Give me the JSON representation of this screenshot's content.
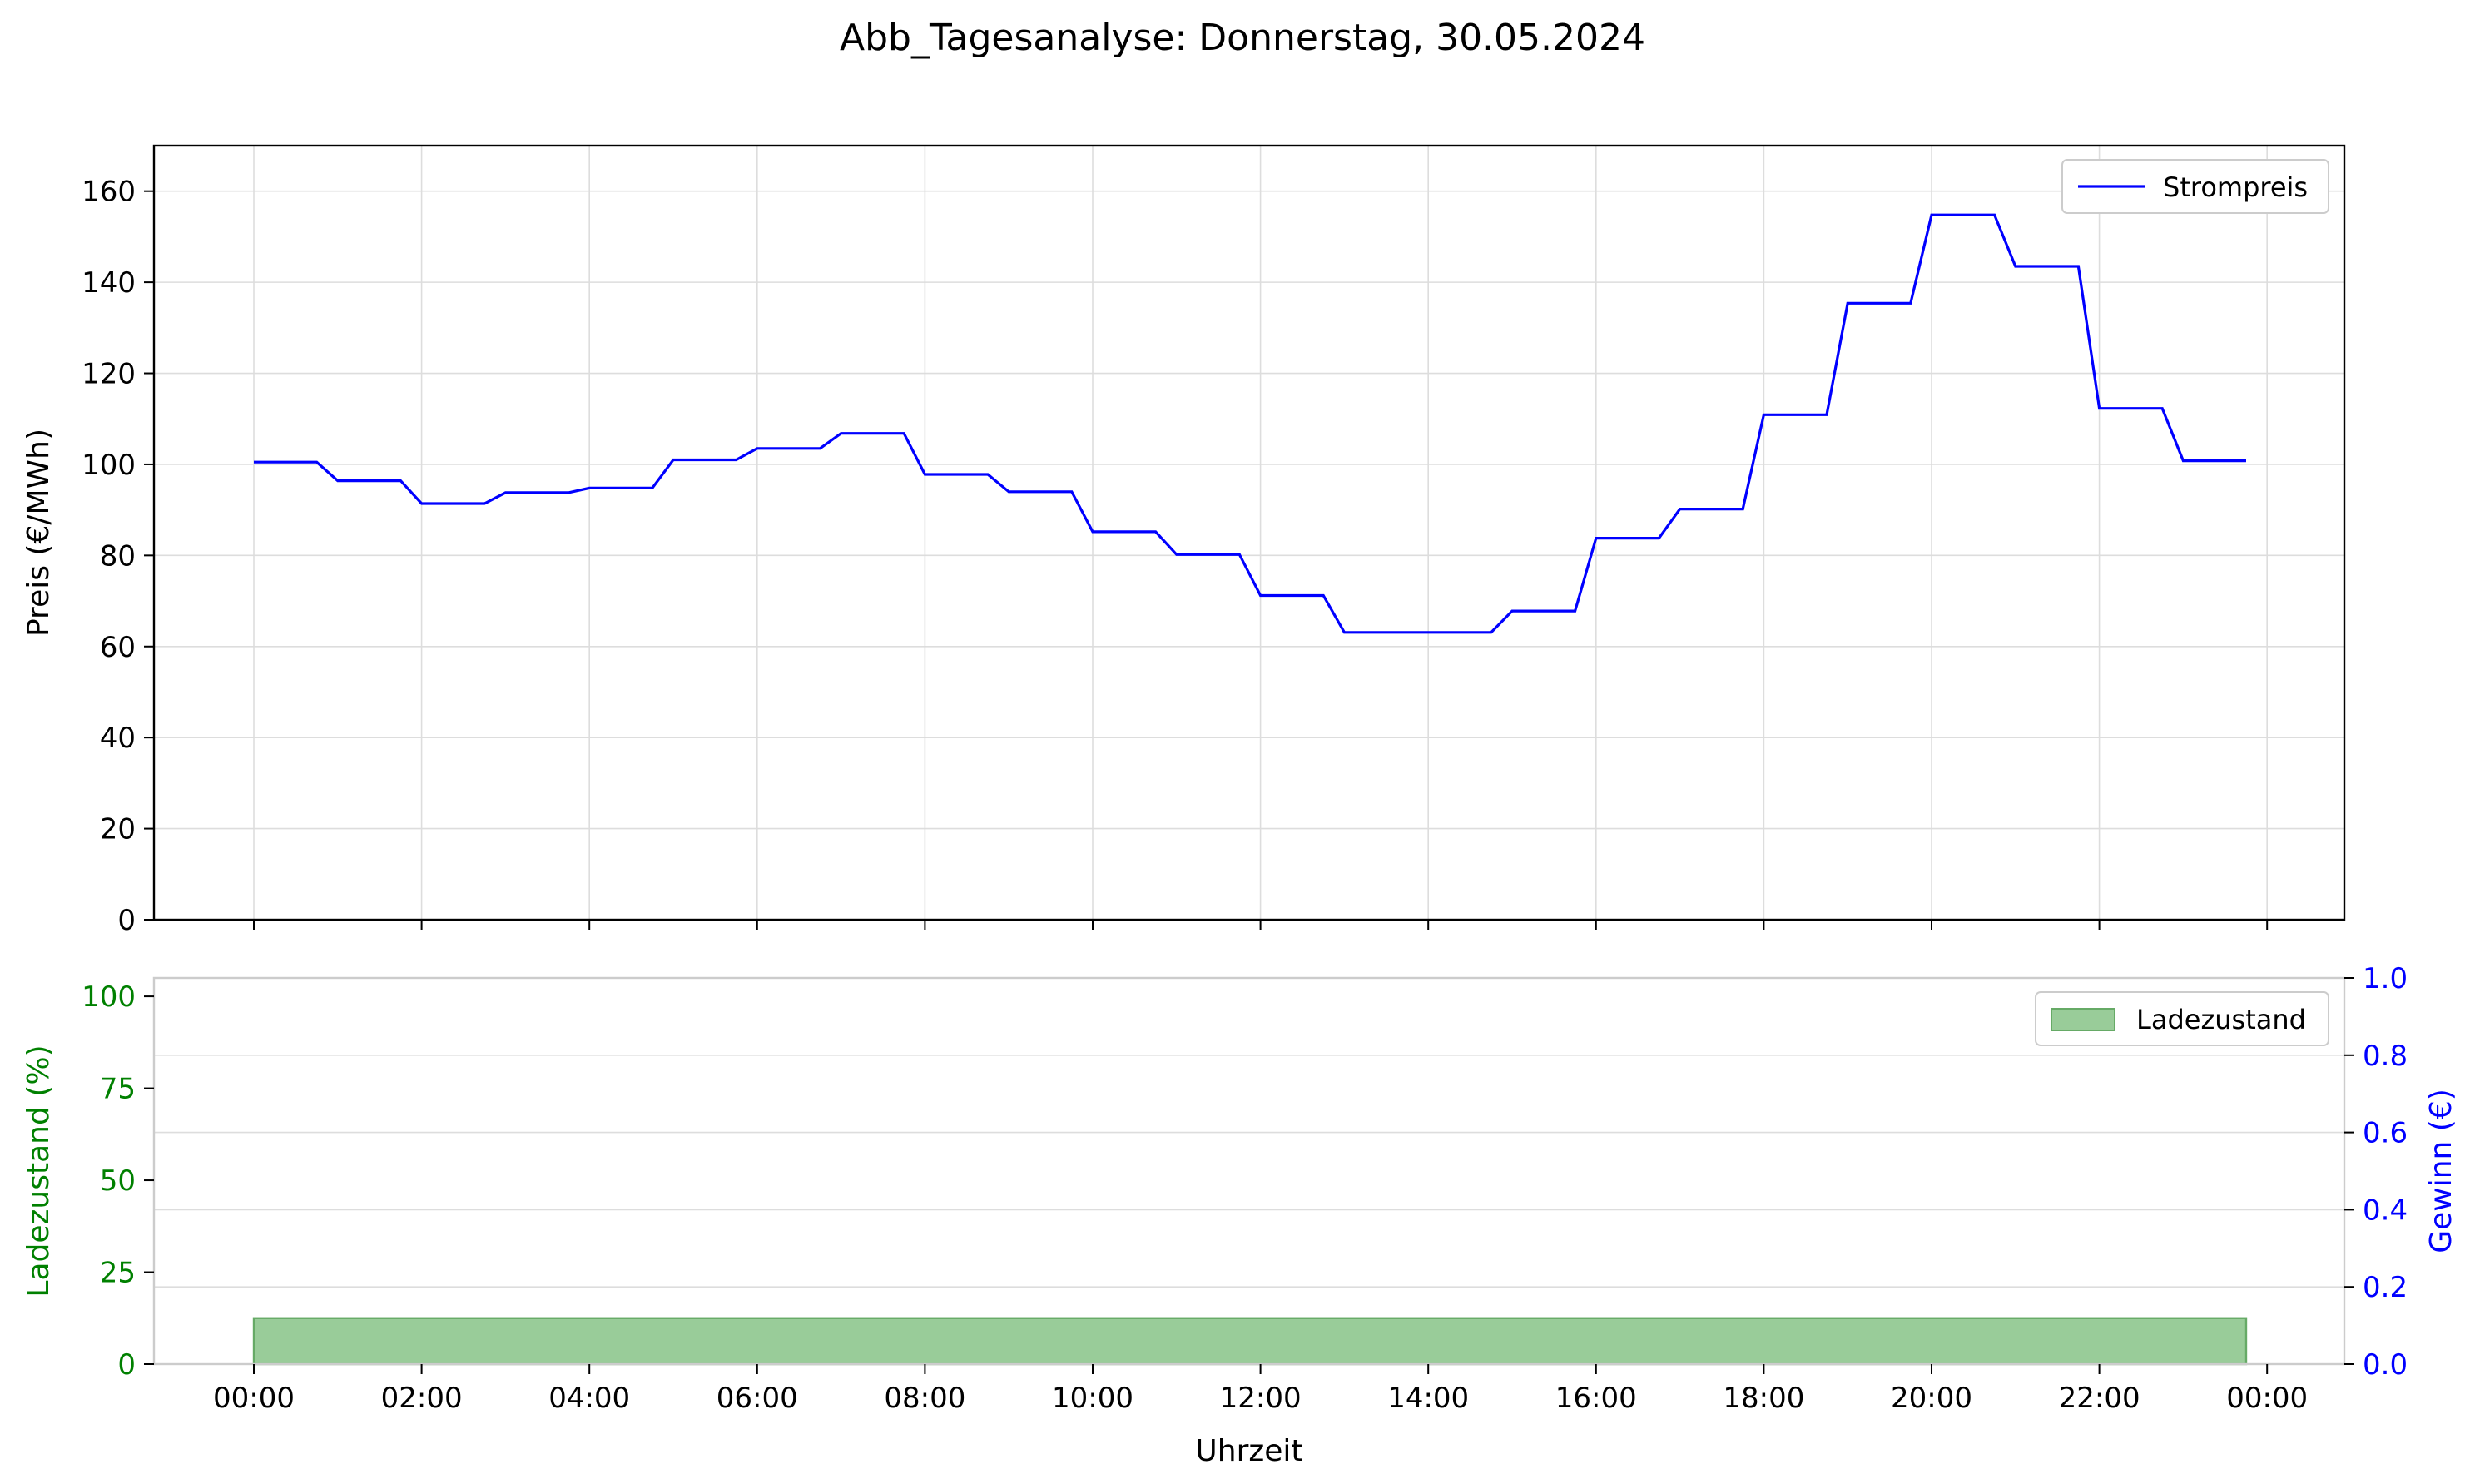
{
  "title": "Abb_Tagesanalyse: Donnerstag, 30.05.2024",
  "colors": {
    "price_line": "#0000ff",
    "soc_fill": "#99cc99",
    "soc_edge": "#66aa66",
    "soc_axis": "#008000",
    "profit_axis": "#0000ff",
    "grid": "#dddddd"
  },
  "chart_data": [
    {
      "type": "line",
      "ylabel": "Preis (€/MWh)",
      "xlabel": "",
      "ylim": [
        0,
        170
      ],
      "yticks": [
        "0",
        "20",
        "40",
        "60",
        "80",
        "100",
        "120",
        "140",
        "160"
      ],
      "x_unit": "hours",
      "grid": true,
      "legend": "top-right",
      "series": [
        {
          "name": "Strompreis",
          "x": [
            0,
            0.75,
            1,
            1.75,
            2,
            2.75,
            3,
            3.75,
            4,
            4.75,
            5,
            5.75,
            6,
            6.75,
            7,
            7.75,
            8,
            8.75,
            9,
            9.75,
            10,
            10.75,
            11,
            11.75,
            12,
            12.75,
            13,
            13.75,
            14,
            14.75,
            15,
            15.75,
            16,
            16.75,
            17,
            17.75,
            18,
            18.75,
            19,
            19.75,
            20,
            20.75,
            21,
            21.75,
            22,
            22.75,
            23,
            23.75
          ],
          "values": [
            100.5,
            100.5,
            96.4,
            96.4,
            91.4,
            91.4,
            93.8,
            93.8,
            94.8,
            94.8,
            101,
            101,
            103.5,
            103.5,
            106.8,
            106.8,
            97.8,
            97.8,
            94,
            94,
            85.2,
            85.2,
            80.2,
            80.2,
            71.2,
            71.2,
            63.1,
            63.1,
            63.1,
            63.1,
            67.8,
            67.8,
            83.8,
            83.8,
            90.2,
            90.2,
            110.9,
            110.9,
            135.4,
            135.4,
            154.8,
            154.8,
            143.5,
            143.5,
            112.3,
            112.3,
            100.8,
            100.8
          ]
        }
      ]
    },
    {
      "type": "area",
      "xlabel": "Uhrzeit",
      "ylabel": "Ladezustand (%)",
      "ylim": [
        0,
        105
      ],
      "yticks": [
        "0",
        "25",
        "50",
        "75",
        "100"
      ],
      "y2label": "Gewinn (€)",
      "y2lim": [
        0,
        1
      ],
      "y2ticks": [
        "0.0",
        "0.2",
        "0.4",
        "0.6",
        "0.8",
        "1.0"
      ],
      "xticks": [
        "00:00",
        "02:00",
        "04:00",
        "06:00",
        "08:00",
        "10:00",
        "12:00",
        "14:00",
        "16:00",
        "18:00",
        "20:00",
        "22:00",
        "00:00"
      ],
      "x_unit": "hours",
      "grid": true,
      "legend": "top-right",
      "series": [
        {
          "name": "Ladezustand",
          "x": [
            0,
            23.75
          ],
          "values": [
            12.5,
            12.5
          ]
        }
      ]
    }
  ]
}
